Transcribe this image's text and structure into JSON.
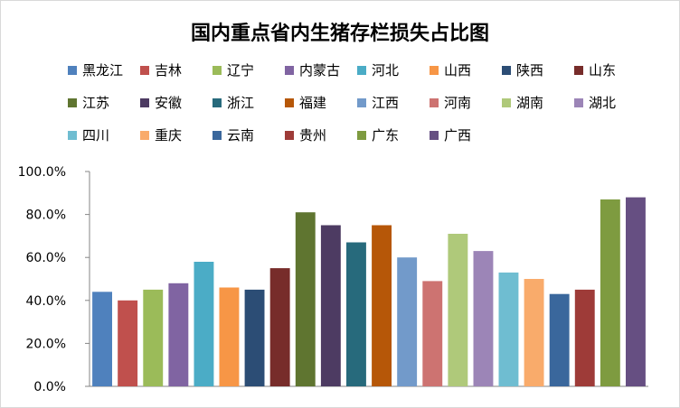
{
  "chart_data": {
    "type": "bar",
    "title": "国内重点省内生猪存栏损失占比图",
    "xlabel": "",
    "ylabel": "",
    "ylim": [
      0,
      100
    ],
    "y_ticks": [
      "0.0%",
      "20.0%",
      "40.0%",
      "60.0%",
      "80.0%",
      "100.0%"
    ],
    "grid": false,
    "legend_position": "top",
    "categories": [
      "黑龙江",
      "吉林",
      "辽宁",
      "内蒙古",
      "河北",
      "山西",
      "陕西",
      "山东",
      "江苏",
      "安徽",
      "浙江",
      "福建",
      "江西",
      "河南",
      "湖南",
      "湖北",
      "四川",
      "重庆",
      "云南",
      "贵州",
      "广东",
      "广西"
    ],
    "values": [
      44,
      40,
      45,
      48,
      58,
      46,
      45,
      55,
      81,
      75,
      67,
      75,
      60,
      49,
      71,
      63,
      53,
      50,
      43,
      45,
      87,
      88
    ],
    "colors": [
      "#4f81bd",
      "#c0504d",
      "#9bbb59",
      "#8064a2",
      "#4bacc6",
      "#f79646",
      "#2c4d75",
      "#772c2a",
      "#5f7530",
      "#4d3b62",
      "#276a7c",
      "#b65708",
      "#729aca",
      "#cd7371",
      "#afc97a",
      "#9c85b7",
      "#6fbdd1",
      "#f9ab6b",
      "#3a679c",
      "#9e3b38",
      "#7e9b40",
      "#664f82"
    ]
  }
}
